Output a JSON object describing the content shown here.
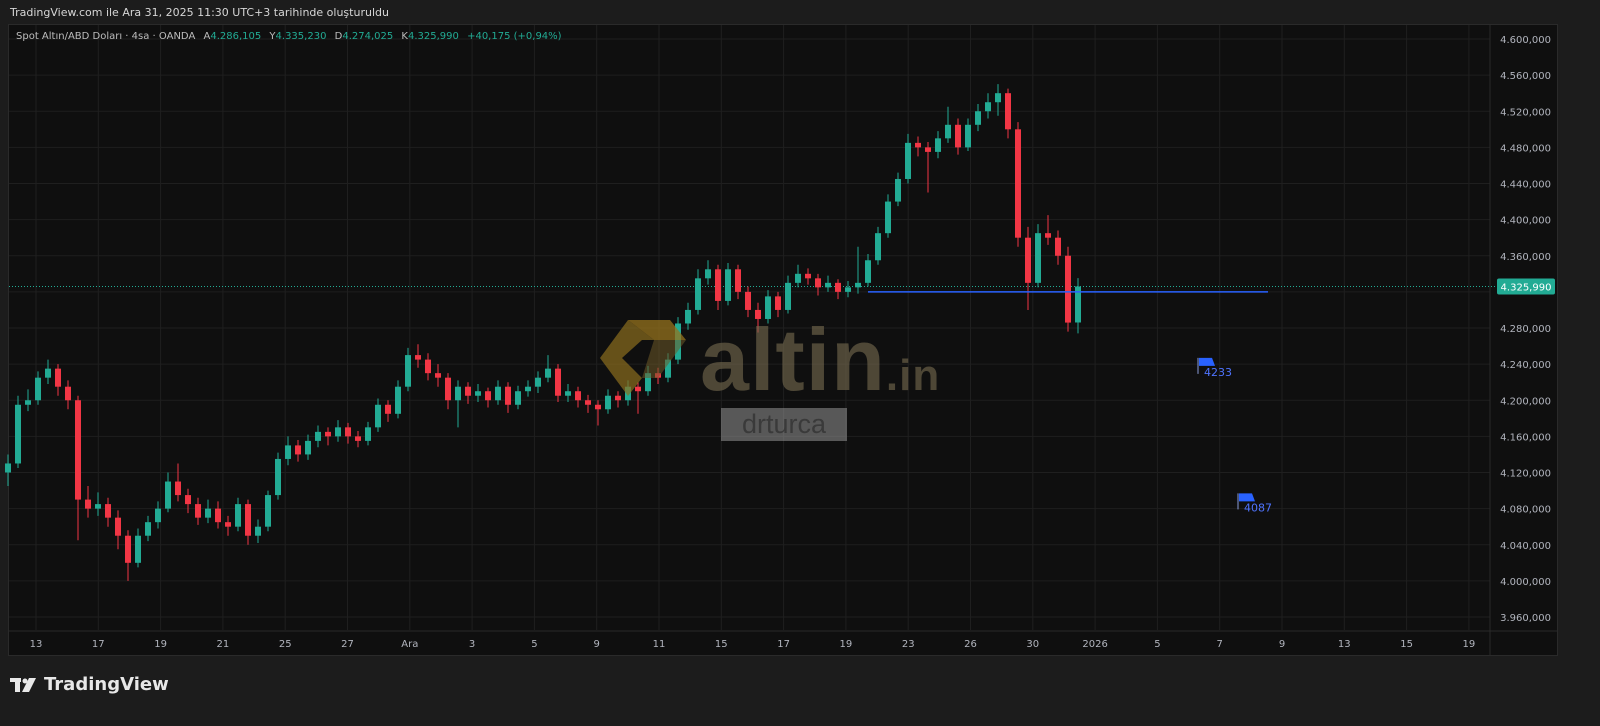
{
  "caption": "TradingView.com ile Ara 31, 2025 11:30 UTC+3 tarihinde oluşturuldu",
  "legend": {
    "symbol": "Spot Altın/ABD Doları · 4sa · OANDA",
    "open_label": "A",
    "open": "4.286,105",
    "high_label": "Y",
    "high": "4.335,230",
    "low_label": "D",
    "low": "4.274,025",
    "close_label": "K",
    "close": "4.325,990",
    "change": "+40,175 (+0,94%)"
  },
  "watermark": {
    "brand": "altin",
    "brand_suffix": ".in",
    "user": "drturca"
  },
  "footer": {
    "brand": "TradingView"
  },
  "colors": {
    "up": "#22ab94",
    "down": "#f23645",
    "line": "#2962ff",
    "background": "#0f0f0f",
    "grid": "#1f1f1f"
  },
  "chart_data": {
    "type": "candlestick",
    "ylim": [
      3960,
      4600
    ],
    "y_ticks": [
      4600,
      4560,
      4520,
      4480,
      4440,
      4400,
      4360,
      4320,
      4280,
      4240,
      4200,
      4160,
      4120,
      4080,
      4040,
      4000,
      3960
    ],
    "y_tick_labels": [
      "4.600,000",
      "4.560,000",
      "4.520,000",
      "4.480,000",
      "4.440,000",
      "4.400,000",
      "4.360,000",
      "",
      "4.280,000",
      "4.240,000",
      "4.200,000",
      "4.160,000",
      "4.120,000",
      "4.080,000",
      "4.040,000",
      "4.000,000",
      "3.960,000"
    ],
    "x_tick_labels": [
      "13",
      "17",
      "19",
      "21",
      "25",
      "27",
      "Ara",
      "3",
      "5",
      "9",
      "11",
      "15",
      "17",
      "19",
      "23",
      "26",
      "30",
      "2026",
      "5",
      "7",
      "9",
      "13",
      "15",
      "19"
    ],
    "last_price": 4325.99,
    "last_price_label": "4.325,990",
    "candles": [
      [
        4120,
        4140,
        4105,
        4130
      ],
      [
        4130,
        4205,
        4125,
        4195
      ],
      [
        4195,
        4212,
        4188,
        4200
      ],
      [
        4200,
        4232,
        4195,
        4225
      ],
      [
        4225,
        4245,
        4218,
        4235
      ],
      [
        4235,
        4240,
        4205,
        4215
      ],
      [
        4215,
        4222,
        4190,
        4200
      ],
      [
        4200,
        4205,
        4045,
        4090
      ],
      [
        4090,
        4105,
        4070,
        4080
      ],
      [
        4080,
        4098,
        4072,
        4085
      ],
      [
        4085,
        4092,
        4060,
        4070
      ],
      [
        4070,
        4078,
        4035,
        4050
      ],
      [
        4050,
        4056,
        4000,
        4020
      ],
      [
        4020,
        4058,
        4015,
        4050
      ],
      [
        4050,
        4072,
        4044,
        4065
      ],
      [
        4065,
        4088,
        4058,
        4080
      ],
      [
        4080,
        4120,
        4076,
        4110
      ],
      [
        4110,
        4130,
        4088,
        4095
      ],
      [
        4095,
        4102,
        4075,
        4085
      ],
      [
        4085,
        4092,
        4062,
        4070
      ],
      [
        4070,
        4090,
        4064,
        4080
      ],
      [
        4080,
        4088,
        4058,
        4065
      ],
      [
        4065,
        4072,
        4050,
        4060
      ],
      [
        4060,
        4092,
        4055,
        4085
      ],
      [
        4085,
        4090,
        4040,
        4050
      ],
      [
        4050,
        4068,
        4042,
        4060
      ],
      [
        4060,
        4100,
        4055,
        4095
      ],
      [
        4095,
        4142,
        4090,
        4135
      ],
      [
        4135,
        4160,
        4128,
        4150
      ],
      [
        4150,
        4156,
        4132,
        4140
      ],
      [
        4140,
        4162,
        4134,
        4155
      ],
      [
        4155,
        4172,
        4148,
        4165
      ],
      [
        4165,
        4170,
        4150,
        4160
      ],
      [
        4160,
        4178,
        4154,
        4170
      ],
      [
        4170,
        4175,
        4152,
        4160
      ],
      [
        4160,
        4166,
        4148,
        4155
      ],
      [
        4155,
        4176,
        4150,
        4170
      ],
      [
        4170,
        4202,
        4165,
        4195
      ],
      [
        4195,
        4200,
        4176,
        4185
      ],
      [
        4185,
        4222,
        4180,
        4215
      ],
      [
        4215,
        4258,
        4210,
        4250
      ],
      [
        4250,
        4262,
        4236,
        4245
      ],
      [
        4245,
        4252,
        4222,
        4230
      ],
      [
        4230,
        4240,
        4215,
        4225
      ],
      [
        4225,
        4230,
        4190,
        4200
      ],
      [
        4200,
        4222,
        4170,
        4215
      ],
      [
        4215,
        4220,
        4196,
        4205
      ],
      [
        4205,
        4218,
        4198,
        4210
      ],
      [
        4210,
        4214,
        4192,
        4200
      ],
      [
        4200,
        4222,
        4195,
        4215
      ],
      [
        4215,
        4220,
        4186,
        4195
      ],
      [
        4195,
        4216,
        4190,
        4210
      ],
      [
        4210,
        4222,
        4204,
        4215
      ],
      [
        4215,
        4232,
        4208,
        4225
      ],
      [
        4225,
        4250,
        4220,
        4235
      ],
      [
        4235,
        4240,
        4198,
        4205
      ],
      [
        4205,
        4218,
        4198,
        4210
      ],
      [
        4210,
        4215,
        4192,
        4200
      ],
      [
        4200,
        4206,
        4186,
        4195
      ],
      [
        4195,
        4200,
        4172,
        4190
      ],
      [
        4190,
        4212,
        4185,
        4205
      ],
      [
        4205,
        4210,
        4192,
        4200
      ],
      [
        4200,
        4222,
        4194,
        4215
      ],
      [
        4215,
        4220,
        4185,
        4210
      ],
      [
        4210,
        4238,
        4205,
        4230
      ],
      [
        4230,
        4236,
        4218,
        4225
      ],
      [
        4225,
        4252,
        4220,
        4245
      ],
      [
        4245,
        4292,
        4240,
        4285
      ],
      [
        4285,
        4308,
        4278,
        4300
      ],
      [
        4300,
        4345,
        4295,
        4335
      ],
      [
        4335,
        4355,
        4328,
        4345
      ],
      [
        4345,
        4350,
        4300,
        4310
      ],
      [
        4310,
        4352,
        4305,
        4345
      ],
      [
        4345,
        4350,
        4312,
        4320
      ],
      [
        4320,
        4326,
        4292,
        4300
      ],
      [
        4300,
        4308,
        4275,
        4290
      ],
      [
        4290,
        4322,
        4285,
        4315
      ],
      [
        4315,
        4320,
        4292,
        4300
      ],
      [
        4300,
        4338,
        4296,
        4330
      ],
      [
        4330,
        4350,
        4325,
        4340
      ],
      [
        4340,
        4346,
        4328,
        4335
      ],
      [
        4335,
        4340,
        4316,
        4325
      ],
      [
        4325,
        4338,
        4320,
        4330
      ],
      [
        4330,
        4334,
        4312,
        4320
      ],
      [
        4320,
        4332,
        4314,
        4325
      ],
      [
        4325,
        4370,
        4318,
        4330
      ],
      [
        4330,
        4362,
        4326,
        4355
      ],
      [
        4355,
        4392,
        4350,
        4385
      ],
      [
        4385,
        4428,
        4380,
        4420
      ],
      [
        4420,
        4452,
        4415,
        4445
      ],
      [
        4445,
        4495,
        4440,
        4485
      ],
      [
        4485,
        4492,
        4470,
        4480
      ],
      [
        4480,
        4486,
        4430,
        4475
      ],
      [
        4475,
        4498,
        4468,
        4490
      ],
      [
        4490,
        4525,
        4485,
        4505
      ],
      [
        4505,
        4512,
        4472,
        4480
      ],
      [
        4480,
        4512,
        4476,
        4505
      ],
      [
        4505,
        4528,
        4498,
        4520
      ],
      [
        4520,
        4540,
        4512,
        4530
      ],
      [
        4530,
        4550,
        4515,
        4540
      ],
      [
        4540,
        4545,
        4490,
        4500
      ],
      [
        4500,
        4508,
        4370,
        4380
      ],
      [
        4380,
        4392,
        4300,
        4330
      ],
      [
        4330,
        4395,
        4325,
        4385
      ],
      [
        4385,
        4405,
        4372,
        4380
      ],
      [
        4380,
        4388,
        4350,
        4360
      ],
      [
        4360,
        4370,
        4276,
        4286
      ],
      [
        4286.105,
        4335.23,
        4274.025,
        4325.99
      ]
    ],
    "horizontal_line": {
      "value": 4320,
      "from_bar": 86,
      "to_bar": 126
    },
    "flags": [
      {
        "label": "4233",
        "value": 4238,
        "bar": 119
      },
      {
        "label": "4087",
        "value": 4088,
        "bar": 123
      }
    ]
  }
}
